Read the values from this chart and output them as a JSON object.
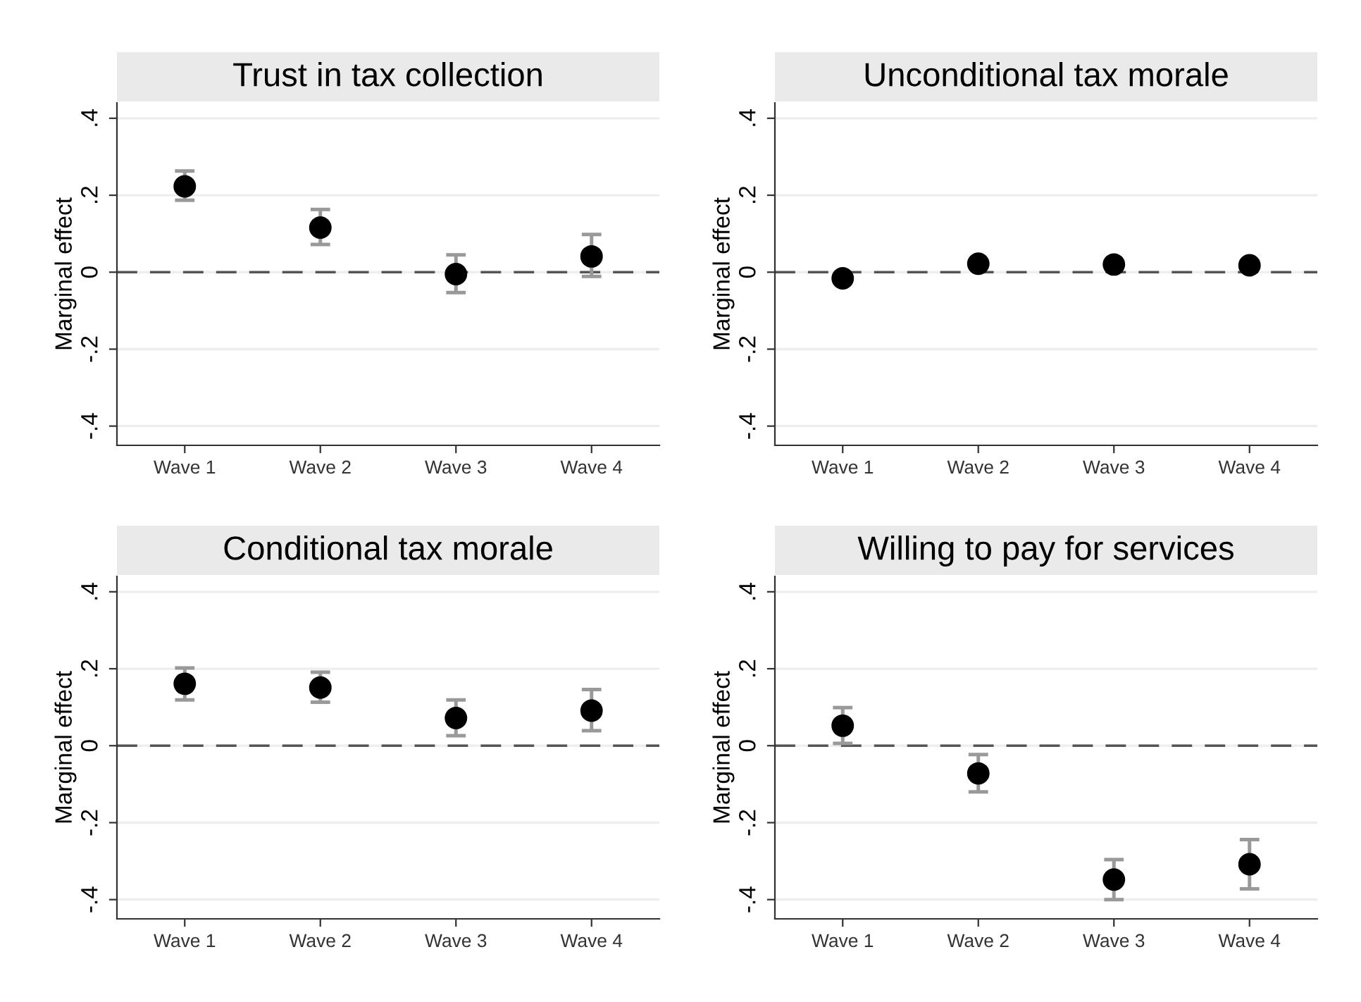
{
  "chart_data": [
    {
      "type": "scatter",
      "title": "Trust in tax collection",
      "ylabel": "Marginal effect",
      "categories": [
        "Wave 1",
        "Wave 2",
        "Wave 3",
        "Wave 4"
      ],
      "series": [
        {
          "color": "#000000",
          "values": [
            0.223,
            0.116,
            -0.005,
            0.041
          ],
          "errors": [
            [
              0.187,
              0.263
            ],
            [
              0.072,
              0.163
            ],
            [
              -0.053,
              0.045
            ],
            [
              -0.011,
              0.098
            ]
          ]
        }
      ],
      "ylim": [
        -0.45,
        0.44
      ],
      "yticks": [
        {
          "value": -0.4,
          "label": "-.4"
        },
        {
          "value": -0.2,
          "label": "-.2"
        },
        0,
        {
          "value": 0.2,
          "label": ".2"
        },
        {
          "value": 0.4,
          "label": ".4"
        }
      ],
      "grid": "y",
      "marker": "circle",
      "ref_lines": [
        {
          "axis": "y",
          "value": 0,
          "color": "#555555",
          "line_style": "dashed"
        }
      ]
    },
    {
      "type": "scatter",
      "title": "Unconditional tax morale",
      "ylabel": "Marginal effect",
      "categories": [
        "Wave 1",
        "Wave 2",
        "Wave 3",
        "Wave 4"
      ],
      "series": [
        {
          "color": "#000000",
          "values": [
            -0.016,
            0.022,
            0.02,
            0.018
          ]
        }
      ],
      "ylim": [
        -0.45,
        0.44
      ],
      "yticks": [
        {
          "value": -0.4,
          "label": "-.4"
        },
        {
          "value": -0.2,
          "label": "-.2"
        },
        0,
        {
          "value": 0.2,
          "label": ".2"
        },
        {
          "value": 0.4,
          "label": ".4"
        }
      ],
      "grid": "y",
      "marker": "circle",
      "ref_lines": [
        {
          "axis": "y",
          "value": 0,
          "color": "#555555",
          "line_style": "dashed"
        }
      ]
    },
    {
      "type": "scatter",
      "title": "Conditional tax morale",
      "ylabel": "Marginal effect",
      "categories": [
        "Wave 1",
        "Wave 2",
        "Wave 3",
        "Wave 4"
      ],
      "series": [
        {
          "color": "#000000",
          "values": [
            0.161,
            0.151,
            0.072,
            0.091
          ],
          "errors": [
            [
              0.119,
              0.202
            ],
            [
              0.113,
              0.191
            ],
            [
              0.026,
              0.119
            ],
            [
              0.039,
              0.146
            ]
          ]
        }
      ],
      "ylim": [
        -0.45,
        0.44
      ],
      "yticks": [
        {
          "value": -0.4,
          "label": "-.4"
        },
        {
          "value": -0.2,
          "label": "-.2"
        },
        0,
        {
          "value": 0.2,
          "label": ".2"
        },
        {
          "value": 0.4,
          "label": ".4"
        }
      ],
      "grid": "y",
      "marker": "circle",
      "ref_lines": [
        {
          "axis": "y",
          "value": 0,
          "color": "#555555",
          "line_style": "dashed"
        }
      ]
    },
    {
      "type": "scatter",
      "title": "Willing to pay for services",
      "ylabel": "Marginal effect",
      "categories": [
        "Wave 1",
        "Wave 2",
        "Wave 3",
        "Wave 4"
      ],
      "series": [
        {
          "color": "#000000",
          "values": [
            0.052,
            -0.072,
            -0.348,
            -0.308
          ],
          "errors": [
            [
              0.006,
              0.099
            ],
            [
              -0.12,
              -0.023
            ],
            [
              -0.4,
              -0.296
            ],
            [
              -0.372,
              -0.244
            ]
          ]
        }
      ],
      "ylim": [
        -0.45,
        0.44
      ],
      "yticks": [
        {
          "value": -0.4,
          "label": "-.4"
        },
        {
          "value": -0.2,
          "label": "-.2"
        },
        0,
        {
          "value": 0.2,
          "label": ".2"
        },
        {
          "value": 0.4,
          "label": ".4"
        }
      ],
      "grid": "y",
      "marker": "circle",
      "ref_lines": [
        {
          "axis": "y",
          "value": 0,
          "color": "#555555",
          "line_style": "dashed"
        }
      ]
    }
  ]
}
